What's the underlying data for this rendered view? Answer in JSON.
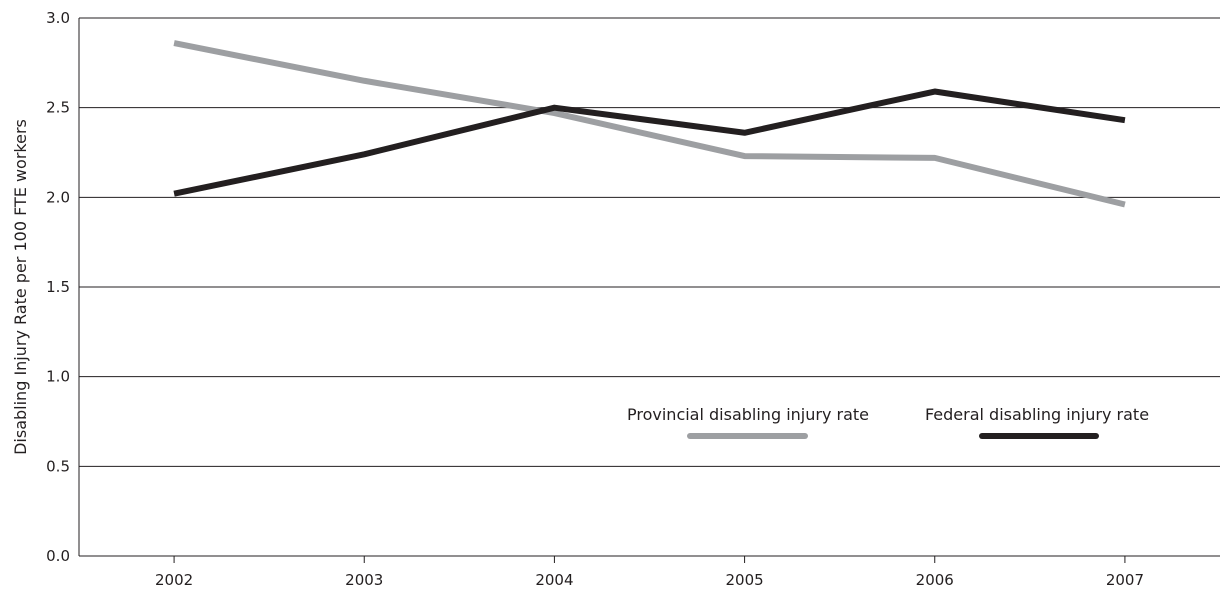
{
  "chart_data": {
    "type": "line",
    "title": "",
    "xlabel": "",
    "ylabel": "Disabling Injury Rate per 100 FTE workers",
    "categories": [
      "2002",
      "2003",
      "2004",
      "2005",
      "2006",
      "2007"
    ],
    "ylim": [
      0,
      3.0
    ],
    "yticks": [
      "0.0",
      "0.5",
      "1.0",
      "1.5",
      "2.0",
      "2.5",
      "3.0"
    ],
    "grid": "horizontal",
    "legend_position": "center-right",
    "series": [
      {
        "name": "Provincial disabling injury rate",
        "color": "#9d9fa2",
        "values": [
          2.86,
          2.65,
          2.47,
          2.23,
          2.22,
          1.96
        ]
      },
      {
        "name": "Federal disabling injury rate",
        "color": "#231f20",
        "values": [
          2.02,
          2.24,
          2.5,
          2.36,
          2.59,
          2.43
        ]
      }
    ]
  }
}
